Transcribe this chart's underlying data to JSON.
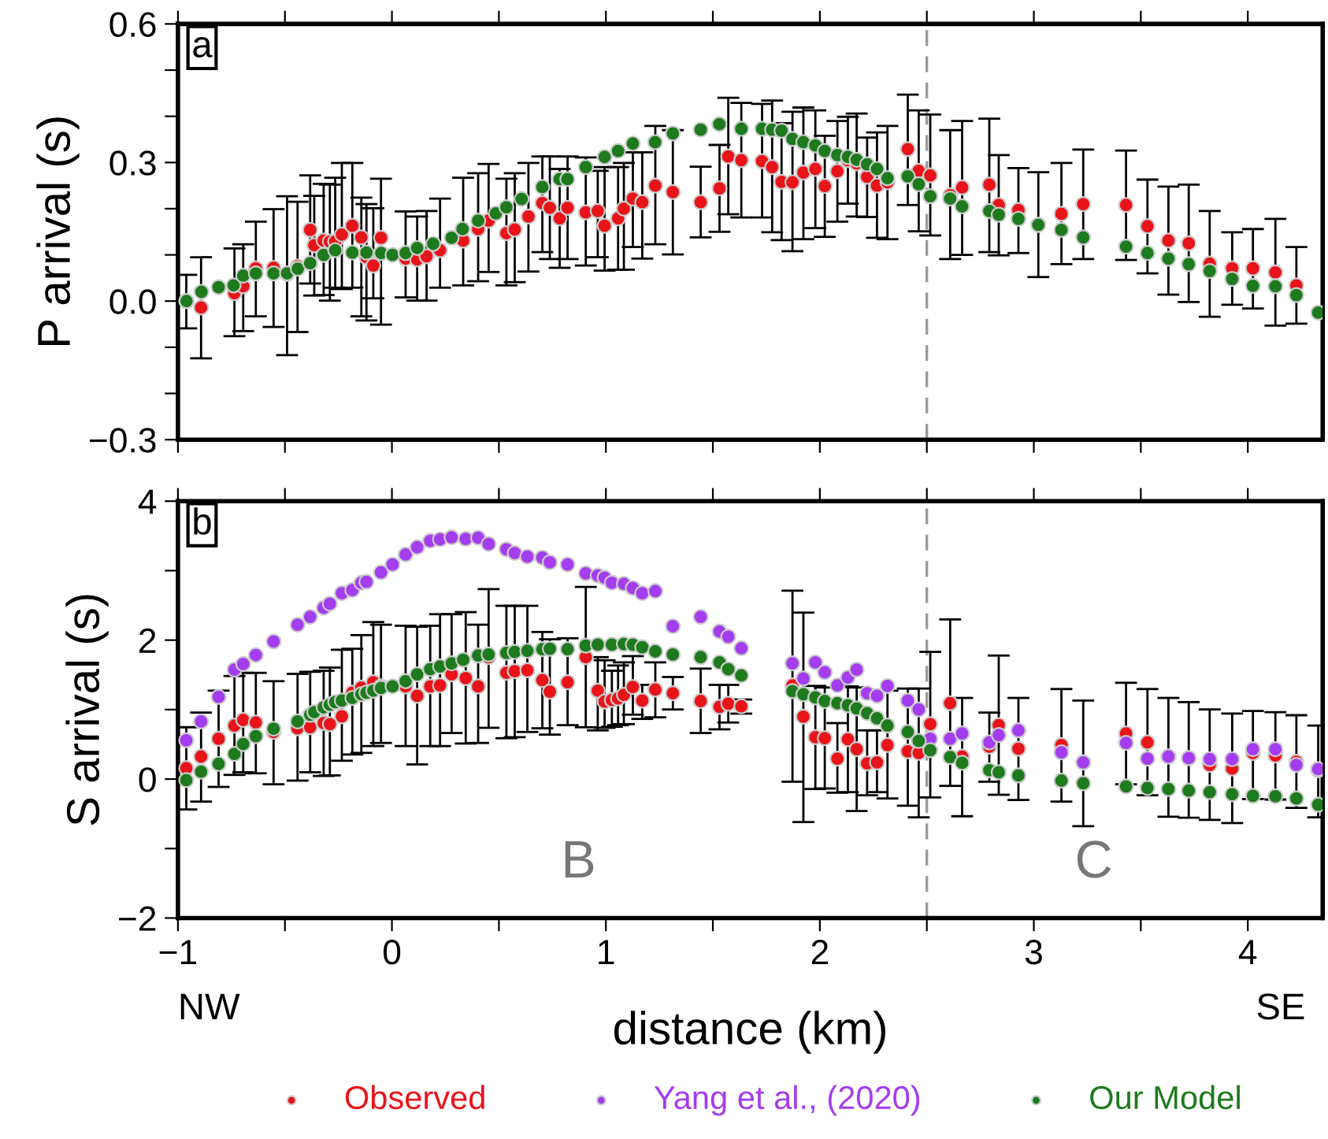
{
  "chart_data": [
    {
      "type": "scatter",
      "ylabel": "P arrival (s)",
      "xlim": [
        -1,
        4.35
      ],
      "ylim": [
        -0.3,
        0.6
      ],
      "xticks": [
        -1,
        {
          "value": -0.5,
          "label": null
        },
        0,
        {
          "value": 0.5,
          "label": null
        },
        1,
        {
          "value": 1.5,
          "label": null
        },
        2,
        {
          "value": 2.5,
          "label": null
        },
        3,
        {
          "value": 3.5,
          "label": null
        },
        4
      ],
      "yticks": [
        {
          "value": -0.3,
          "label": "−0.3"
        },
        {
          "value": -0.2,
          "label": null
        },
        {
          "value": -0.1,
          "label": null
        },
        {
          "value": 0,
          "label": "0.0"
        },
        {
          "value": 0.1,
          "label": null
        },
        {
          "value": 0.2,
          "label": null
        },
        {
          "value": 0.3,
          "label": "0.3"
        },
        {
          "value": 0.4,
          "label": null
        },
        {
          "value": 0.5,
          "label": null
        },
        {
          "value": 0.6,
          "label": "0.6"
        }
      ],
      "tick_labels": "y",
      "grid": false,
      "legend": false,
      "marker": "circle",
      "annotations": [
        "a"
      ],
      "ref_lines": [
        {
          "axis": "x",
          "value": 2.5,
          "color": "#999999",
          "line_style": "dashed"
        }
      ],
      "series": [
        {
          "color": "#e8141a",
          "x": [
            -0.961,
            -0.892,
            -0.736,
            -0.695,
            -0.636,
            -0.553,
            -0.49,
            -0.441,
            -0.382,
            -0.363,
            -0.319,
            -0.29,
            -0.265,
            -0.234,
            -0.185,
            -0.143,
            -0.119,
            -0.087,
            -0.051,
            0.064,
            0.118,
            0.162,
            0.225,
            0.333,
            0.403,
            0.452,
            0.535,
            0.574,
            0.638,
            0.703,
            0.738,
            0.784,
            0.821,
            0.906,
            0.962,
            0.994,
            1.057,
            1.084,
            1.126,
            1.17,
            1.231,
            1.313,
            1.443,
            1.531,
            1.572,
            1.633,
            1.73,
            1.777,
            1.821,
            1.872,
            1.923,
            1.979,
            2.023,
            2.082,
            2.131,
            2.172,
            2.221,
            2.267,
            2.316,
            2.411,
            2.462,
            2.516,
            2.609,
            2.665,
            2.792,
            2.836,
            2.928,
            3.021,
            3.129,
            3.231,
            3.431,
            3.531,
            3.629,
            3.724,
            3.822,
            3.927,
            4.024,
            4.129,
            4.227
          ],
          "values": [
            0.0,
            -0.014,
            0.017,
            0.032,
            0.071,
            0.072,
            0.059,
            0.075,
            0.154,
            0.121,
            0.131,
            0.129,
            0.129,
            0.144,
            0.163,
            0.138,
            0.095,
            0.077,
            0.137,
            0.092,
            0.09,
            0.097,
            0.11,
            0.131,
            0.156,
            0.174,
            0.147,
            0.155,
            0.183,
            0.212,
            0.202,
            0.179,
            0.202,
            0.192,
            0.195,
            0.163,
            0.179,
            0.2,
            0.222,
            0.214,
            0.25,
            0.236,
            0.214,
            0.244,
            0.313,
            0.305,
            0.303,
            0.29,
            0.258,
            0.257,
            0.278,
            0.286,
            0.249,
            0.281,
            0.305,
            0.298,
            0.269,
            0.25,
            0.257,
            0.329,
            0.282,
            0.272,
            0.229,
            0.246,
            0.252,
            0.208,
            0.197,
            0.165,
            0.189,
            0.21,
            0.208,
            0.162,
            0.131,
            0.125,
            0.081,
            0.071,
            0.071,
            0.062,
            0.034
          ],
          "errors": [
            [
              -0.059,
              0.057
            ],
            [
              -0.124,
              0.095
            ],
            [
              -0.076,
              0.114
            ],
            [
              -0.065,
              0.123
            ],
            [
              -0.033,
              0.172
            ],
            [
              -0.056,
              0.199
            ],
            [
              -0.117,
              0.227
            ],
            [
              -0.067,
              0.215
            ],
            [
              0.038,
              0.272
            ],
            [
              0.012,
              0.228
            ],
            [
              0.013,
              0.254
            ],
            [
              0.001,
              0.252
            ],
            [
              0.029,
              0.267
            ],
            [
              0.026,
              0.299
            ],
            [
              0.029,
              0.299
            ],
            [
              -0.033,
              0.224
            ],
            [
              -0.042,
              0.21
            ],
            [
              0.006,
              0.201
            ],
            [
              -0.051,
              0.265
            ],
            [
              0.008,
              0.194
            ],
            [
              0.001,
              0.183
            ],
            [
              0.001,
              0.195
            ],
            [
              0.029,
              0.222
            ],
            [
              0.034,
              0.267
            ],
            [
              0.043,
              0.277
            ],
            [
              0.063,
              0.297
            ],
            [
              0.034,
              0.265
            ],
            [
              0.041,
              0.277
            ],
            [
              0.064,
              0.299
            ],
            [
              0.106,
              0.313
            ],
            [
              0.091,
              0.313
            ],
            [
              0.072,
              0.286
            ],
            [
              0.091,
              0.313
            ],
            [
              0.077,
              0.311
            ],
            [
              0.095,
              0.282
            ],
            [
              0.066,
              0.29
            ],
            [
              0.068,
              0.29
            ],
            [
              0.068,
              0.299
            ],
            [
              0.117,
              0.322
            ],
            [
              0.092,
              0.322
            ],
            [
              0.123,
              0.379
            ],
            [
              0.101,
              0.37
            ],
            [
              0.138,
              0.291
            ],
            [
              0.15,
              0.338
            ],
            [
              0.188,
              0.44
            ],
            [
              0.181,
              0.429
            ],
            [
              0.181,
              0.427
            ],
            [
              0.149,
              0.434
            ],
            [
              0.132,
              0.385
            ],
            [
              0.108,
              0.41
            ],
            [
              0.134,
              0.419
            ],
            [
              0.158,
              0.413
            ],
            [
              0.139,
              0.358
            ],
            [
              0.172,
              0.39
            ],
            [
              0.211,
              0.399
            ],
            [
              0.183,
              0.406
            ],
            [
              0.182,
              0.354
            ],
            [
              0.137,
              0.365
            ],
            [
              0.134,
              0.379
            ],
            [
              0.208,
              0.447
            ],
            [
              0.151,
              0.413
            ],
            [
              0.142,
              0.404
            ],
            [
              0.091,
              0.37
            ],
            [
              0.1,
              0.39
            ],
            [
              0.106,
              0.395
            ],
            [
              0.099,
              0.316
            ],
            [
              0.104,
              0.288
            ],
            [
              0.052,
              0.279
            ],
            [
              0.08,
              0.299
            ],
            [
              0.091,
              0.328
            ],
            [
              0.089,
              0.326
            ],
            [
              0.06,
              0.263
            ],
            [
              0.014,
              0.248
            ],
            [
              -0.002,
              0.252
            ],
            [
              -0.034,
              0.195
            ],
            [
              -0.008,
              0.149
            ],
            [
              -0.016,
              0.156
            ],
            [
              -0.053,
              0.178
            ],
            [
              -0.049,
              0.117
            ]
          ]
        },
        {
          "color": "#1d7a1d",
          "x": [
            -0.96,
            -0.89,
            -0.81,
            -0.74,
            -0.695,
            -0.636,
            -0.553,
            -0.49,
            -0.44,
            -0.382,
            -0.319,
            -0.265,
            -0.185,
            -0.119,
            -0.05,
            0.003,
            0.064,
            0.118,
            0.193,
            0.279,
            0.33,
            0.403,
            0.486,
            0.535,
            0.606,
            0.703,
            0.784,
            0.82,
            0.906,
            0.994,
            1.057,
            1.126,
            1.23,
            1.313,
            1.443,
            1.53,
            1.633,
            1.73,
            1.777,
            1.821,
            1.872,
            1.923,
            1.979,
            2.023,
            2.082,
            2.131,
            2.172,
            2.221,
            2.267,
            2.316,
            2.411,
            2.462,
            2.516,
            2.609,
            2.665,
            2.792,
            2.836,
            2.928,
            3.021,
            3.129,
            3.231,
            3.431,
            3.531,
            3.629,
            3.724,
            3.822,
            3.927,
            4.024,
            4.129,
            4.227,
            4.329
          ],
          "values": [
            0.0,
            0.02,
            0.03,
            0.034,
            0.055,
            0.06,
            0.06,
            0.06,
            0.07,
            0.082,
            0.1,
            0.11,
            0.105,
            0.105,
            0.104,
            0.1,
            0.104,
            0.115,
            0.124,
            0.137,
            0.156,
            0.174,
            0.19,
            0.203,
            0.221,
            0.247,
            0.264,
            0.264,
            0.29,
            0.312,
            0.325,
            0.341,
            0.344,
            0.363,
            0.371,
            0.383,
            0.373,
            0.373,
            0.371,
            0.369,
            0.351,
            0.344,
            0.337,
            0.325,
            0.316,
            0.312,
            0.306,
            0.296,
            0.286,
            0.266,
            0.27,
            0.253,
            0.227,
            0.222,
            0.205,
            0.195,
            0.187,
            0.178,
            0.165,
            0.154,
            0.138,
            0.118,
            0.104,
            0.092,
            0.08,
            0.065,
            0.048,
            0.033,
            0.032,
            0.013,
            -0.025
          ]
        }
      ]
    },
    {
      "type": "scatter",
      "xlabel": "distance (km)",
      "ylabel": "S arrival (s)",
      "xlim": [
        -1,
        4.35
      ],
      "ylim": [
        -2,
        4
      ],
      "xticks": [
        {
          "value": -1,
          "label": "−1"
        },
        {
          "value": -0.5,
          "label": null
        },
        0,
        {
          "value": 0.5,
          "label": null
        },
        1,
        {
          "value": 1.5,
          "label": null
        },
        2,
        {
          "value": 2.5,
          "label": null
        },
        3,
        {
          "value": 3.5,
          "label": null
        },
        4
      ],
      "yticks": [
        {
          "value": -2,
          "label": "−2"
        },
        {
          "value": -1,
          "label": null
        },
        0,
        {
          "value": 1,
          "label": null
        },
        2,
        {
          "value": 3,
          "label": null
        },
        4
      ],
      "grid": false,
      "legend": "bottom",
      "marker": "circle",
      "annotations": [
        "b",
        "B",
        "C",
        "NW",
        "SE"
      ],
      "ref_lines": [
        {
          "axis": "x",
          "value": 2.5,
          "color": "#999999",
          "line_style": "dashed"
        }
      ],
      "series": [
        {
          "name": "Observed",
          "color": "#e8141a",
          "x": [
            -0.961,
            -0.892,
            -0.81,
            -0.736,
            -0.695,
            -0.636,
            -0.553,
            -0.441,
            -0.382,
            -0.319,
            -0.29,
            -0.234,
            -0.185,
            -0.143,
            -0.087,
            -0.051,
            0.064,
            0.118,
            0.179,
            0.225,
            0.279,
            0.345,
            0.403,
            0.452,
            0.535,
            0.574,
            0.633,
            0.703,
            0.738,
            0.821,
            0.906,
            0.962,
            0.994,
            1.028,
            1.057,
            1.084,
            1.126,
            1.17,
            1.231,
            1.313,
            1.443,
            1.531,
            1.572,
            1.633,
            1.872,
            1.923,
            1.979,
            2.023,
            2.082,
            2.131,
            2.172,
            2.221,
            2.267,
            2.316,
            2.411,
            2.462,
            2.516,
            2.609,
            2.665,
            2.792,
            2.836,
            2.928,
            3.129,
            3.231,
            3.431,
            3.531,
            3.629,
            3.724,
            3.822,
            3.927,
            4.024,
            4.129,
            4.227,
            4.329
          ],
          "values": [
            0.158,
            0.324,
            0.58,
            0.769,
            0.851,
            0.814,
            0.678,
            0.731,
            0.746,
            0.806,
            0.791,
            0.904,
            1.243,
            1.318,
            1.394,
            1.334,
            1.334,
            1.198,
            1.334,
            1.349,
            1.507,
            1.454,
            1.334,
            1.755,
            1.529,
            1.552,
            1.567,
            1.424,
            1.258,
            1.394,
            1.755,
            1.273,
            1.115,
            1.138,
            1.16,
            1.213,
            1.326,
            1.13,
            1.288,
            1.236,
            1.123,
            1.04,
            1.085,
            1.047,
            1.349,
            0.897,
            0.603,
            0.588,
            0.294,
            0.573,
            0.43,
            0.226,
            0.241,
            0.49,
            0.399,
            0.377,
            0.791,
            1.092,
            0.324,
            0.467,
            0.776,
            0.437,
            0.49,
            0.241,
            0.656,
            0.528,
            0.324,
            0.302,
            0.204,
            0.151,
            0.377,
            0.339,
            0.249,
            0.128
          ],
          "errors": [
            [
              -0.437,
              0.746
            ],
            [
              -0.324,
              0.957
            ],
            [
              -0.113,
              1.273
            ],
            [
              0.06,
              1.484
            ],
            [
              0.098,
              1.529
            ],
            [
              0.083,
              1.529
            ],
            [
              -0.075,
              1.409
            ],
            [
              -0.022,
              1.514
            ],
            [
              0.098,
              1.544
            ],
            [
              0.045,
              1.559
            ],
            [
              0.053,
              1.605
            ],
            [
              0.264,
              1.861
            ],
            [
              0.354,
              1.876
            ],
            [
              0.377,
              2.072
            ],
            [
              0.475,
              2.26
            ],
            [
              0.52,
              2.222
            ],
            [
              0.475,
              2.207
            ],
            [
              0.211,
              2.192
            ],
            [
              0.475,
              2.207
            ],
            [
              0.475,
              2.373
            ],
            [
              0.663,
              2.373
            ],
            [
              0.512,
              2.403
            ],
            [
              0.52,
              2.222
            ],
            [
              0.738,
              2.735
            ],
            [
              0.588,
              2.494
            ],
            [
              0.603,
              2.494
            ],
            [
              0.678,
              2.494
            ],
            [
              0.731,
              2.117
            ],
            [
              0.64,
              2.012
            ],
            [
              0.776,
              2.027
            ],
            [
              0.746,
              2.765
            ],
            [
              0.701,
              1.755
            ],
            [
              0.738,
              1.71
            ],
            [
              0.753,
              1.559
            ],
            [
              0.776,
              1.635
            ],
            [
              0.791,
              1.68
            ],
            [
              0.927,
              1.77
            ],
            [
              0.866,
              1.356
            ],
            [
              0.889,
              1.68
            ],
            [
              1.002,
              1.469
            ],
            [
              0.663,
              1.59
            ],
            [
              0.716,
              1.356
            ],
            [
              0.814,
              1.356
            ],
            [
              0.942,
              1.145
            ],
            [
              -0.038,
              2.712
            ],
            [
              -0.618,
              2.396
            ],
            [
              -0.143,
              1.341
            ],
            [
              -0.135,
              1.318
            ],
            [
              -0.196,
              0.806
            ],
            [
              -0.188,
              1.334
            ],
            [
              -0.459,
              1.318
            ],
            [
              -0.233,
              0.701
            ],
            [
              -0.188,
              0.701
            ],
            [
              -0.279,
              1.273
            ],
            [
              -0.384,
              1.303
            ],
            [
              -0.55,
              1.303
            ],
            [
              -0.264,
              1.831
            ],
            [
              -0.098,
              2.298
            ],
            [
              -0.535,
              1.168
            ],
            [
              -0.038,
              0.957
            ],
            [
              -0.226,
              1.778
            ],
            [
              -0.301,
              1.168
            ],
            [
              -0.324,
              1.296
            ],
            [
              -0.678,
              1.13
            ],
            [
              -0.075,
              1.386
            ],
            [
              -0.233,
              1.296
            ],
            [
              -0.542,
              1.168
            ],
            [
              -0.557,
              1.108
            ],
            [
              -0.587,
              1.002
            ],
            [
              -0.632,
              0.942
            ],
            [
              -0.286,
              0.979
            ],
            [
              -0.294,
              0.964
            ],
            [
              -0.414,
              0.919
            ],
            [
              -0.55,
              0.769
            ]
          ]
        },
        {
          "name": "Yang et al., (2020)",
          "color": "#a43cef",
          "x": [
            -0.961,
            -0.892,
            -0.81,
            -0.736,
            -0.695,
            -0.636,
            -0.553,
            -0.441,
            -0.382,
            -0.319,
            -0.29,
            -0.234,
            -0.185,
            -0.143,
            -0.119,
            -0.051,
            0.003,
            0.064,
            0.118,
            0.179,
            0.225,
            0.279,
            0.345,
            0.403,
            0.452,
            0.535,
            0.574,
            0.633,
            0.703,
            0.738,
            0.821,
            0.906,
            0.962,
            0.994,
            1.028,
            1.084,
            1.126,
            1.17,
            1.231,
            1.313,
            1.443,
            1.531,
            1.572,
            1.633,
            1.872,
            1.923,
            1.979,
            2.023,
            2.082,
            2.131,
            2.172,
            2.221,
            2.267,
            2.316,
            2.411,
            2.462,
            2.516,
            2.609,
            2.665,
            2.792,
            2.836,
            2.928,
            3.129,
            3.231,
            3.431,
            3.531,
            3.629,
            3.724,
            3.822,
            3.927,
            4.024,
            4.129,
            4.227,
            4.329
          ],
          "values": [
            0.558,
            0.829,
            1.183,
            1.575,
            1.657,
            1.786,
            1.981,
            2.222,
            2.335,
            2.464,
            2.524,
            2.674,
            2.72,
            2.825,
            2.84,
            2.976,
            3.089,
            3.232,
            3.337,
            3.428,
            3.45,
            3.48,
            3.458,
            3.473,
            3.383,
            3.307,
            3.254,
            3.202,
            3.187,
            3.119,
            3.089,
            2.961,
            2.931,
            2.9,
            2.825,
            2.81,
            2.75,
            2.674,
            2.705,
            2.2,
            2.335,
            2.124,
            2.049,
            1.883,
            1.665,
            1.447,
            1.68,
            1.537,
            1.349,
            1.462,
            1.575,
            1.236,
            1.198,
            1.341,
            1.13,
            1.002,
            0.58,
            0.58,
            0.656,
            0.528,
            0.633,
            0.701,
            0.384,
            0.241,
            0.52,
            0.294,
            0.324,
            0.302,
            0.287,
            0.287,
            0.43,
            0.43,
            0.204,
            0.143
          ]
        },
        {
          "name": "Our Model",
          "color": "#1d7a1d",
          "x": [
            -0.961,
            -0.892,
            -0.81,
            -0.736,
            -0.695,
            -0.636,
            -0.553,
            -0.441,
            -0.382,
            -0.363,
            -0.319,
            -0.29,
            -0.265,
            -0.234,
            -0.185,
            -0.143,
            -0.119,
            -0.087,
            -0.051,
            0.003,
            0.064,
            0.118,
            0.179,
            0.225,
            0.279,
            0.333,
            0.403,
            0.452,
            0.535,
            0.574,
            0.633,
            0.703,
            0.738,
            0.821,
            0.906,
            0.962,
            1.028,
            1.084,
            1.126,
            1.17,
            1.231,
            1.313,
            1.443,
            1.531,
            1.572,
            1.633,
            1.872,
            1.923,
            1.979,
            2.023,
            2.082,
            2.131,
            2.172,
            2.221,
            2.267,
            2.316,
            2.411,
            2.462,
            2.516,
            2.609,
            2.665,
            2.792,
            2.836,
            2.928,
            3.129,
            3.231,
            3.431,
            3.531,
            3.629,
            3.724,
            3.822,
            3.927,
            4.024,
            4.129,
            4.227,
            4.329
          ],
          "values": [
            -0.015,
            0.106,
            0.219,
            0.362,
            0.505,
            0.618,
            0.724,
            0.829,
            0.927,
            0.964,
            1.032,
            1.07,
            1.108,
            1.13,
            1.168,
            1.221,
            1.243,
            1.273,
            1.311,
            1.334,
            1.409,
            1.507,
            1.582,
            1.62,
            1.665,
            1.718,
            1.778,
            1.793,
            1.816,
            1.831,
            1.846,
            1.869,
            1.876,
            1.869,
            1.921,
            1.936,
            1.936,
            1.944,
            1.936,
            1.899,
            1.838,
            1.793,
            1.755,
            1.68,
            1.582,
            1.492,
            1.266,
            1.221,
            1.175,
            1.123,
            1.092,
            1.062,
            1.017,
            0.949,
            0.874,
            0.769,
            0.678,
            0.55,
            0.415,
            0.317,
            0.234,
            0.128,
            0.098,
            0.053,
            -0.022,
            -0.06,
            -0.105,
            -0.128,
            -0.143,
            -0.166,
            -0.188,
            -0.218,
            -0.241,
            -0.248,
            -0.279,
            -0.369
          ]
        }
      ]
    }
  ]
}
